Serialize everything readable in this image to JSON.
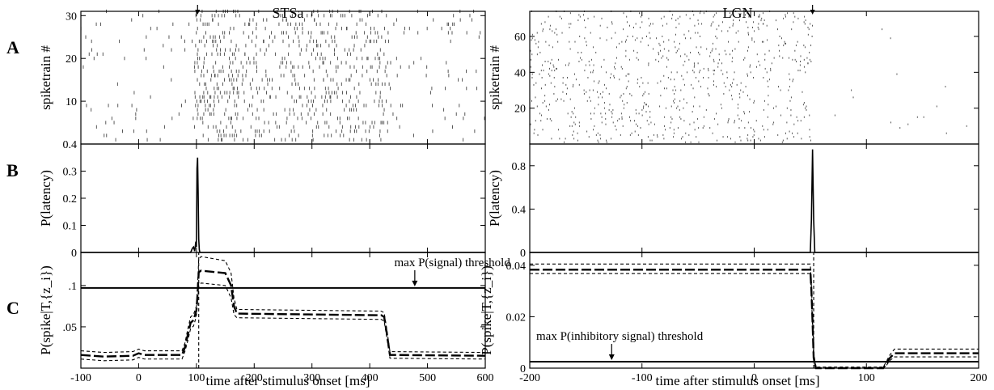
{
  "figure": {
    "panel_letters": [
      "A",
      "B",
      "C"
    ],
    "xlabel": "time after stimulus onset [ms]",
    "columns": [
      {
        "title": "STSa"
      },
      {
        "title": "LGN"
      }
    ]
  },
  "chart_data": [
    {
      "id": "stsa-raster",
      "type": "scatter",
      "style": "raster",
      "title": "",
      "xlabel": "",
      "ylabel": "spiketrain #",
      "xlim": [
        -100,
        600
      ],
      "ylim": [
        0,
        31
      ],
      "xticks": [
        -100,
        0,
        100,
        200,
        300,
        400,
        500,
        600
      ],
      "xtick_labels": [],
      "yticks": [
        10,
        20,
        30
      ],
      "ytick_labels": [
        "10",
        "20",
        "30"
      ],
      "n_trains": 31,
      "rate_profile": [
        {
          "x0": -100,
          "x1": 95,
          "rate_hz": 10
        },
        {
          "x0": 95,
          "x1": 170,
          "rate_hz": 85
        },
        {
          "x0": 170,
          "x1": 430,
          "rate_hz": 60
        },
        {
          "x0": 430,
          "x1": 600,
          "rate_hz": 12
        }
      ],
      "marker_x": 102
    },
    {
      "id": "stsa-latency",
      "type": "line",
      "title": "",
      "xlabel": "",
      "ylabel": "P(latency)",
      "xlim": [
        -100,
        600
      ],
      "ylim": [
        0,
        0.4
      ],
      "xticks": [
        -100,
        0,
        100,
        200,
        300,
        400,
        500,
        600
      ],
      "xtick_labels": [],
      "yticks": [
        0,
        0.1,
        0.2,
        0.3,
        0.4
      ],
      "ytick_labels": [
        "0",
        "0.1",
        "0.2",
        "0.3",
        "0.4"
      ],
      "series": [
        {
          "style": "solid",
          "x": [
            -100,
            90,
            93,
            95,
            97,
            99,
            100,
            101,
            102,
            103,
            104,
            105,
            106,
            110,
            600
          ],
          "y": [
            0,
            0,
            0.015,
            0.02,
            0.005,
            0.04,
            0.02,
            0.31,
            0.35,
            0.22,
            0.05,
            0.01,
            0,
            0,
            0
          ]
        }
      ]
    },
    {
      "id": "stsa-spike-prob",
      "type": "line",
      "title": "",
      "xlabel": "time after stimulus onset [ms]",
      "ylabel": "P(spike|T,{z_i})",
      "xlim": [
        -100,
        600
      ],
      "ylim": [
        0,
        0.14
      ],
      "xticks": [
        -100,
        0,
        100,
        200,
        300,
        400,
        500,
        600
      ],
      "xtick_labels": [
        "-100",
        "0",
        "100",
        "200",
        "300",
        "400",
        "500",
        "600"
      ],
      "yticks": [
        0.05,
        0.1
      ],
      "ytick_labels": [
        ".05",
        ".1"
      ],
      "threshold": {
        "y": 0.097,
        "label": "max P(signal) threshold",
        "arrow_x": 478
      },
      "series": [
        {
          "style": "long-dash",
          "x": [
            -100,
            -60,
            -10,
            0,
            10,
            75,
            80,
            85,
            90,
            95,
            100,
            102,
            104,
            108,
            150,
            160,
            165,
            170,
            420,
            425,
            430,
            435,
            600
          ],
          "y": [
            0.016,
            0.014,
            0.015,
            0.018,
            0.016,
            0.016,
            0.025,
            0.04,
            0.055,
            0.058,
            0.07,
            0.09,
            0.116,
            0.118,
            0.115,
            0.1,
            0.075,
            0.066,
            0.064,
            0.062,
            0.04,
            0.016,
            0.015
          ]
        },
        {
          "style": "short-dash",
          "x": [
            -100,
            -60,
            -10,
            0,
            10,
            75,
            80,
            85,
            90,
            95,
            100,
            102,
            104,
            108,
            150,
            160,
            165,
            170,
            420,
            425,
            430,
            435,
            600
          ],
          "y": [
            0.021,
            0.019,
            0.02,
            0.023,
            0.021,
            0.021,
            0.03,
            0.047,
            0.062,
            0.065,
            0.075,
            0.1,
            0.132,
            0.135,
            0.13,
            0.115,
            0.085,
            0.071,
            0.069,
            0.067,
            0.045,
            0.02,
            0.019
          ]
        },
        {
          "style": "short-dash",
          "x": [
            -100,
            -60,
            -10,
            0,
            10,
            75,
            80,
            85,
            90,
            95,
            100,
            102,
            104,
            108,
            150,
            160,
            165,
            170,
            420,
            425,
            430,
            435,
            600
          ],
          "y": [
            0.011,
            0.009,
            0.01,
            0.013,
            0.011,
            0.011,
            0.02,
            0.033,
            0.048,
            0.051,
            0.063,
            0.08,
            0.1,
            0.103,
            0.1,
            0.085,
            0.065,
            0.061,
            0.059,
            0.057,
            0.035,
            0.012,
            0.011
          ]
        },
        {
          "style": "short-dash",
          "x": [
            104,
            104
          ],
          "y": [
            0,
            0.14
          ]
        }
      ]
    },
    {
      "id": "lgn-raster",
      "type": "scatter",
      "style": "raster",
      "title": "",
      "xlabel": "",
      "ylabel": "spiketrain #",
      "xlim": [
        -200,
        200
      ],
      "ylim": [
        0,
        74
      ],
      "xticks": [
        -200,
        -100,
        0,
        100,
        200
      ],
      "xtick_labels": [],
      "yticks": [
        20,
        40,
        60
      ],
      "ytick_labels": [
        "20",
        "40",
        "60"
      ],
      "n_trains": 74,
      "rate_profile": [
        {
          "x0": -200,
          "x1": 52,
          "rate_hz": 40
        },
        {
          "x0": 52,
          "x1": 115,
          "rate_hz": 0.4
        },
        {
          "x0": 115,
          "x1": 200,
          "rate_hz": 2
        }
      ],
      "marker_x": 52
    },
    {
      "id": "lgn-latency",
      "type": "line",
      "title": "",
      "xlabel": "",
      "ylabel": "P(latency)",
      "xlim": [
        -200,
        200
      ],
      "ylim": [
        0,
        1.0
      ],
      "xticks": [
        -200,
        -100,
        0,
        100,
        200
      ],
      "xtick_labels": [],
      "yticks": [
        0,
        0.4,
        0.8
      ],
      "ytick_labels": [
        "0",
        "0.4",
        "0.8"
      ],
      "series": [
        {
          "style": "solid",
          "x": [
            -200,
            50,
            51,
            52,
            53,
            54,
            200
          ],
          "y": [
            0,
            0,
            0.3,
            0.95,
            0.3,
            0,
            0
          ]
        }
      ]
    },
    {
      "id": "lgn-spike-prob",
      "type": "line",
      "title": "",
      "xlabel": "time after stimulus onset [ms]",
      "ylabel": "P(spike|T,{z_i})",
      "xlim": [
        -200,
        200
      ],
      "ylim": [
        0,
        0.045
      ],
      "xticks": [
        -200,
        -100,
        0,
        100,
        200
      ],
      "xtick_labels": [
        "-200",
        "-100",
        "0",
        "100",
        "200"
      ],
      "yticks": [
        0,
        0.02,
        0.04
      ],
      "ytick_labels": [
        "0",
        "0.02",
        "0.04"
      ],
      "threshold": {
        "y": 0.0025,
        "label": "max P(inhibitory signal) threshold",
        "arrow_x": -127
      },
      "series": [
        {
          "style": "long-dash",
          "x": [
            -200,
            50,
            51,
            52,
            53,
            55,
            115,
            118,
            121,
            125,
            200
          ],
          "y": [
            0.0383,
            0.0383,
            0.03,
            0.018,
            0.004,
            0,
            0,
            0.002,
            0.004,
            0.0058,
            0.0058
          ]
        },
        {
          "style": "short-dash",
          "x": [
            -200,
            50,
            51,
            52,
            53,
            55,
            115,
            118,
            121,
            125,
            200
          ],
          "y": [
            0.0405,
            0.0405,
            0.032,
            0.02,
            0.006,
            0.0004,
            0.0004,
            0.0028,
            0.0052,
            0.0074,
            0.0074
          ]
        },
        {
          "style": "short-dash",
          "x": [
            -200,
            50,
            51,
            52,
            53,
            55,
            115,
            118,
            121,
            125,
            200
          ],
          "y": [
            0.0368,
            0.0368,
            0.028,
            0.016,
            0.0025,
            0,
            0,
            0.0012,
            0.003,
            0.0044,
            0.0044
          ]
        },
        {
          "style": "short-dash",
          "x": [
            53,
            53
          ],
          "y": [
            0,
            0.045
          ]
        }
      ]
    }
  ]
}
